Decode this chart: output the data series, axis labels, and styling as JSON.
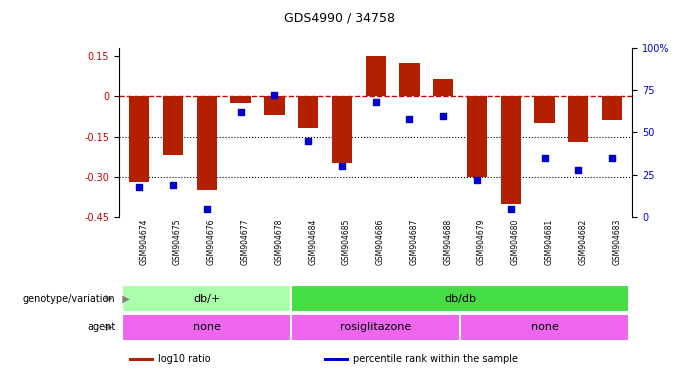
{
  "title": "GDS4990 / 34758",
  "samples": [
    "GSM904674",
    "GSM904675",
    "GSM904676",
    "GSM904677",
    "GSM904678",
    "GSM904684",
    "GSM904685",
    "GSM904686",
    "GSM904687",
    "GSM904688",
    "GSM904679",
    "GSM904680",
    "GSM904681",
    "GSM904682",
    "GSM904683"
  ],
  "log10_ratio": [
    -0.32,
    -0.22,
    -0.35,
    -0.025,
    -0.07,
    -0.12,
    -0.25,
    0.15,
    0.125,
    0.065,
    -0.3,
    -0.4,
    -0.1,
    -0.17,
    -0.09
  ],
  "percentile": [
    18,
    19,
    5,
    62,
    72,
    45,
    30,
    68,
    58,
    60,
    22,
    5,
    35,
    28,
    35
  ],
  "ylim_left": [
    -0.45,
    0.18
  ],
  "ylim_right": [
    0,
    100
  ],
  "yticks_left": [
    0.15,
    0.0,
    -0.15,
    -0.3,
    -0.45
  ],
  "ytick_labels_left": [
    "0.15",
    "0",
    "-0.15",
    "-0.30",
    "-0.45"
  ],
  "yticks_right": [
    100,
    75,
    50,
    25,
    0
  ],
  "ytick_labels_right": [
    "100%",
    "75",
    "50",
    "25",
    "0"
  ],
  "hlines": [
    -0.15,
    -0.3
  ],
  "bar_color": "#B22000",
  "scatter_color": "#0000CC",
  "dashed_line_color": "#CC0000",
  "genotype_groups": [
    {
      "label": "db/+",
      "start": 0,
      "end": 5,
      "color": "#AAFFAA"
    },
    {
      "label": "db/db",
      "start": 5,
      "end": 15,
      "color": "#44DD44"
    }
  ],
  "agent_groups": [
    {
      "label": "none",
      "start": 0,
      "end": 5,
      "color": "#EE66EE"
    },
    {
      "label": "rosiglitazone",
      "start": 5,
      "end": 10,
      "color": "#EE66EE"
    },
    {
      "label": "none",
      "start": 10,
      "end": 15,
      "color": "#EE66EE"
    }
  ],
  "legend_items": [
    {
      "label": "log10 ratio",
      "color": "#B22000"
    },
    {
      "label": "percentile rank within the sample",
      "color": "#0000CC"
    }
  ],
  "left_label_color": "#CC0000",
  "right_label_color": "#0000CC",
  "bg_color": "#FFFFFF",
  "xtick_bg_color": "#CCCCCC",
  "xtick_sep_color": "#FFFFFF"
}
